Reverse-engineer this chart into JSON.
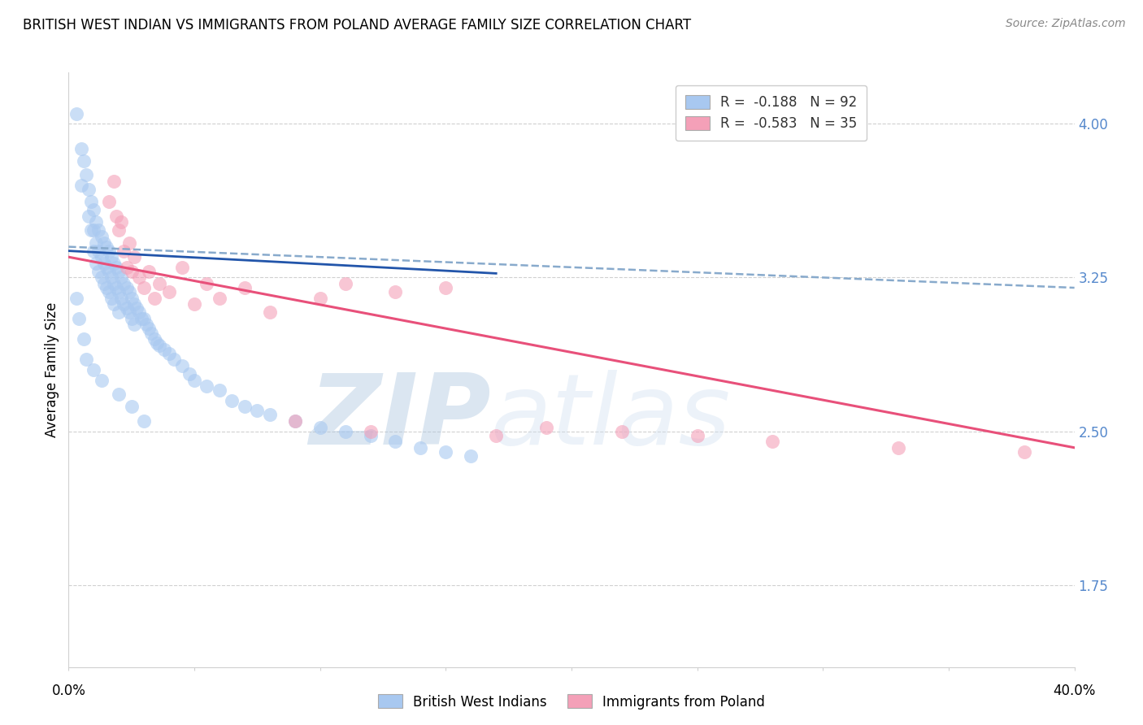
{
  "title": "BRITISH WEST INDIAN VS IMMIGRANTS FROM POLAND AVERAGE FAMILY SIZE CORRELATION CHART",
  "source": "Source: ZipAtlas.com",
  "ylabel": "Average Family Size",
  "yticks": [
    1.75,
    2.5,
    3.25,
    4.0
  ],
  "xlim": [
    0.0,
    0.4
  ],
  "ylim": [
    1.35,
    4.25
  ],
  "background_color": "#ffffff",
  "grid_color": "#d0d0d0",
  "blue_color": "#a8c8f0",
  "pink_color": "#f4a0b8",
  "blue_line_color": "#2255aa",
  "pink_line_color": "#e8507a",
  "blue_dashed_color": "#88aacc",
  "axis_color": "#5588cc",
  "legend_r1": "R =  -0.188   N = 92",
  "legend_r2": "R =  -0.583   N = 35",
  "blue_scatter_x": [
    0.003,
    0.005,
    0.005,
    0.006,
    0.007,
    0.008,
    0.008,
    0.009,
    0.009,
    0.01,
    0.01,
    0.01,
    0.011,
    0.011,
    0.011,
    0.012,
    0.012,
    0.012,
    0.013,
    0.013,
    0.013,
    0.014,
    0.014,
    0.014,
    0.015,
    0.015,
    0.015,
    0.016,
    0.016,
    0.016,
    0.017,
    0.017,
    0.017,
    0.018,
    0.018,
    0.018,
    0.019,
    0.019,
    0.02,
    0.02,
    0.02,
    0.021,
    0.021,
    0.022,
    0.022,
    0.023,
    0.023,
    0.024,
    0.024,
    0.025,
    0.025,
    0.026,
    0.026,
    0.027,
    0.028,
    0.029,
    0.03,
    0.031,
    0.032,
    0.033,
    0.034,
    0.035,
    0.036,
    0.038,
    0.04,
    0.042,
    0.045,
    0.048,
    0.05,
    0.055,
    0.06,
    0.065,
    0.07,
    0.075,
    0.08,
    0.09,
    0.1,
    0.11,
    0.12,
    0.13,
    0.14,
    0.15,
    0.16,
    0.003,
    0.004,
    0.006,
    0.007,
    0.01,
    0.013,
    0.02,
    0.025,
    0.03
  ],
  "blue_scatter_y": [
    4.05,
    3.88,
    3.7,
    3.82,
    3.75,
    3.68,
    3.55,
    3.62,
    3.48,
    3.58,
    3.48,
    3.38,
    3.52,
    3.42,
    3.32,
    3.48,
    3.38,
    3.28,
    3.45,
    3.35,
    3.25,
    3.42,
    3.32,
    3.22,
    3.4,
    3.3,
    3.2,
    3.38,
    3.28,
    3.18,
    3.35,
    3.25,
    3.15,
    3.32,
    3.22,
    3.12,
    3.3,
    3.2,
    3.28,
    3.18,
    3.08,
    3.25,
    3.15,
    3.22,
    3.12,
    3.2,
    3.1,
    3.18,
    3.08,
    3.15,
    3.05,
    3.12,
    3.02,
    3.1,
    3.08,
    3.05,
    3.05,
    3.02,
    3.0,
    2.98,
    2.95,
    2.93,
    2.92,
    2.9,
    2.88,
    2.85,
    2.82,
    2.78,
    2.75,
    2.72,
    2.7,
    2.65,
    2.62,
    2.6,
    2.58,
    2.55,
    2.52,
    2.5,
    2.48,
    2.45,
    2.42,
    2.4,
    2.38,
    3.15,
    3.05,
    2.95,
    2.85,
    2.8,
    2.75,
    2.68,
    2.62,
    2.55
  ],
  "pink_scatter_x": [
    0.016,
    0.018,
    0.019,
    0.02,
    0.021,
    0.022,
    0.023,
    0.024,
    0.025,
    0.026,
    0.028,
    0.03,
    0.032,
    0.034,
    0.036,
    0.04,
    0.045,
    0.05,
    0.055,
    0.06,
    0.07,
    0.08,
    0.09,
    0.1,
    0.11,
    0.12,
    0.13,
    0.15,
    0.17,
    0.19,
    0.22,
    0.25,
    0.28,
    0.33,
    0.38
  ],
  "pink_scatter_y": [
    3.62,
    3.72,
    3.55,
    3.48,
    3.52,
    3.38,
    3.3,
    3.42,
    3.28,
    3.35,
    3.25,
    3.2,
    3.28,
    3.15,
    3.22,
    3.18,
    3.3,
    3.12,
    3.22,
    3.15,
    3.2,
    3.08,
    2.55,
    3.15,
    3.22,
    2.5,
    3.18,
    3.2,
    2.48,
    2.52,
    2.5,
    2.48,
    2.45,
    2.42,
    2.4
  ],
  "blue_line_x0": 0.0,
  "blue_line_x1": 0.4,
  "blue_line_y0": 3.4,
  "blue_line_y1": 3.2,
  "pink_line_x0": 0.0,
  "pink_line_x1": 0.4,
  "pink_line_y0": 3.35,
  "pink_line_y1": 2.42,
  "watermark_zip": "ZIP",
  "watermark_atlas": "atlas",
  "title_fontsize": 12,
  "label_fontsize": 12,
  "tick_fontsize": 12,
  "source_fontsize": 10
}
